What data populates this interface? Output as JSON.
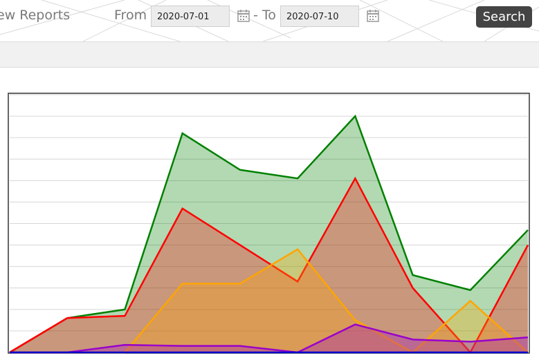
{
  "header": {
    "title": "ew Reports",
    "from_label": "From",
    "from_date": "2020-07-01",
    "to_label": "- To",
    "to_date": "2020-07-10",
    "search": "Search"
  },
  "chart_data": {
    "type": "area",
    "ylim": [
      0,
      12
    ],
    "yticks": [
      0,
      1,
      2,
      3,
      4,
      5,
      6,
      7,
      8,
      9,
      10,
      11,
      12
    ],
    "grid": true,
    "series": [
      {
        "color": "#008000",
        "values": [
          0,
          1.6,
          2.0,
          10.2,
          8.5,
          8.1,
          11.0,
          3.6,
          2.9,
          5.7
        ]
      },
      {
        "color": "#ff0000",
        "values": [
          0,
          1.6,
          1.7,
          6.7,
          5.0,
          3.3,
          8.1,
          3.0,
          0,
          5.0
        ]
      },
      {
        "color": "#ffa500",
        "values": [
          0,
          0,
          0,
          3.2,
          3.2,
          4.8,
          1.5,
          0,
          2.4,
          0
        ]
      },
      {
        "color": "#9900cc",
        "values": [
          0,
          0,
          0.35,
          0.3,
          0.3,
          0,
          1.3,
          0.6,
          0.5,
          0.7
        ]
      },
      {
        "color": "#0000cc",
        "values": [
          0,
          0,
          0,
          0,
          0,
          0,
          0,
          0,
          0,
          0
        ]
      }
    ]
  }
}
